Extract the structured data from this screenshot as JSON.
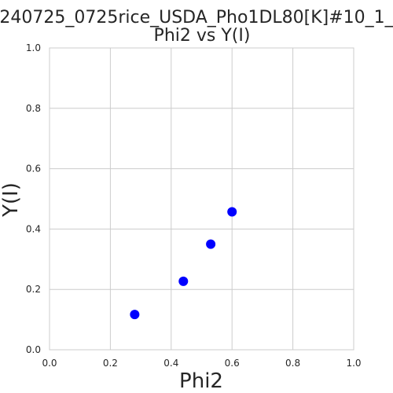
{
  "chart_data": {
    "type": "scatter",
    "title": "240725_0725rice_USDA_Pho1DL80[K]#10_1_",
    "subtitle": "Phi2 vs Y(I)",
    "xlabel": "Phi2",
    "ylabel": "Y(I)",
    "xlim": [
      0.0,
      1.0
    ],
    "ylim": [
      0.0,
      1.0
    ],
    "xticks": [
      "0.0",
      "0.2",
      "0.4",
      "0.6",
      "0.8",
      "1.0"
    ],
    "yticks": [
      "0.0",
      "0.2",
      "0.4",
      "0.6",
      "0.8",
      "1.0"
    ],
    "grid": true,
    "legend": "none",
    "series": [
      {
        "color": "#0000ff",
        "points": [
          {
            "x": 0.28,
            "y": 0.117
          },
          {
            "x": 0.44,
            "y": 0.227
          },
          {
            "x": 0.53,
            "y": 0.35
          },
          {
            "x": 0.6,
            "y": 0.457
          }
        ]
      }
    ]
  },
  "colors": {
    "grid": "#cccccc",
    "spine": "#cccccc",
    "marker": "#0000ff",
    "text": "#262626"
  }
}
